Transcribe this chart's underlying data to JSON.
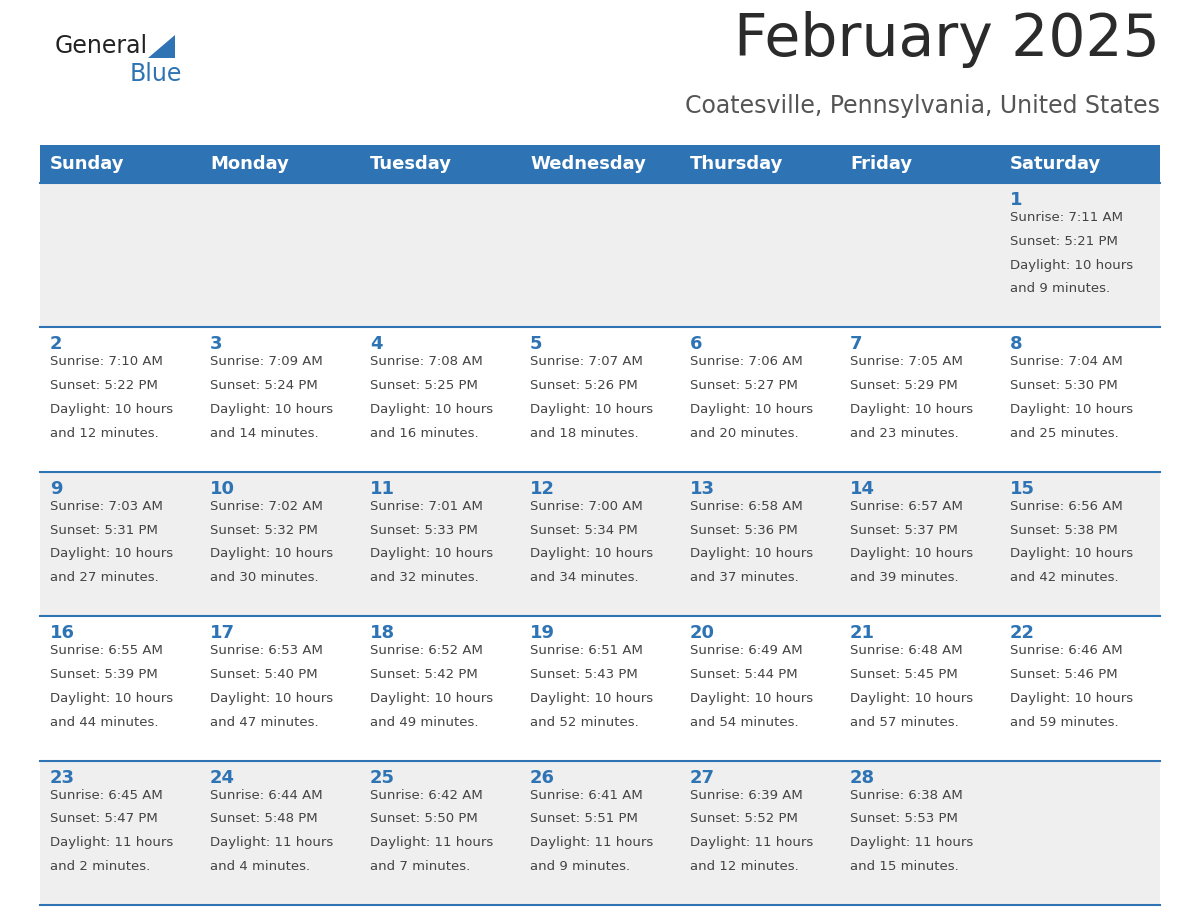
{
  "title": "February 2025",
  "subtitle": "Coatesville, Pennsylvania, United States",
  "days_of_week": [
    "Sunday",
    "Monday",
    "Tuesday",
    "Wednesday",
    "Thursday",
    "Friday",
    "Saturday"
  ],
  "header_bg": "#2E74B5",
  "header_text_color": "#FFFFFF",
  "row_bg_odd": "#EFEFEF",
  "row_bg_even": "#FFFFFF",
  "cell_text_color": "#444444",
  "day_num_color": "#2E74B5",
  "separator_color": "#2E74B5",
  "logo_general_color": "#222222",
  "logo_blue_color": "#2E74B5",
  "weeks": [
    {
      "days": [
        {
          "date": "",
          "sunrise": "",
          "sunset": "",
          "daylight": ""
        },
        {
          "date": "",
          "sunrise": "",
          "sunset": "",
          "daylight": ""
        },
        {
          "date": "",
          "sunrise": "",
          "sunset": "",
          "daylight": ""
        },
        {
          "date": "",
          "sunrise": "",
          "sunset": "",
          "daylight": ""
        },
        {
          "date": "",
          "sunrise": "",
          "sunset": "",
          "daylight": ""
        },
        {
          "date": "",
          "sunrise": "",
          "sunset": "",
          "daylight": ""
        },
        {
          "date": "1",
          "sunrise": "7:11 AM",
          "sunset": "5:21 PM",
          "daylight": "10 hours\nand 9 minutes."
        }
      ]
    },
    {
      "days": [
        {
          "date": "2",
          "sunrise": "7:10 AM",
          "sunset": "5:22 PM",
          "daylight": "10 hours\nand 12 minutes."
        },
        {
          "date": "3",
          "sunrise": "7:09 AM",
          "sunset": "5:24 PM",
          "daylight": "10 hours\nand 14 minutes."
        },
        {
          "date": "4",
          "sunrise": "7:08 AM",
          "sunset": "5:25 PM",
          "daylight": "10 hours\nand 16 minutes."
        },
        {
          "date": "5",
          "sunrise": "7:07 AM",
          "sunset": "5:26 PM",
          "daylight": "10 hours\nand 18 minutes."
        },
        {
          "date": "6",
          "sunrise": "7:06 AM",
          "sunset": "5:27 PM",
          "daylight": "10 hours\nand 20 minutes."
        },
        {
          "date": "7",
          "sunrise": "7:05 AM",
          "sunset": "5:29 PM",
          "daylight": "10 hours\nand 23 minutes."
        },
        {
          "date": "8",
          "sunrise": "7:04 AM",
          "sunset": "5:30 PM",
          "daylight": "10 hours\nand 25 minutes."
        }
      ]
    },
    {
      "days": [
        {
          "date": "9",
          "sunrise": "7:03 AM",
          "sunset": "5:31 PM",
          "daylight": "10 hours\nand 27 minutes."
        },
        {
          "date": "10",
          "sunrise": "7:02 AM",
          "sunset": "5:32 PM",
          "daylight": "10 hours\nand 30 minutes."
        },
        {
          "date": "11",
          "sunrise": "7:01 AM",
          "sunset": "5:33 PM",
          "daylight": "10 hours\nand 32 minutes."
        },
        {
          "date": "12",
          "sunrise": "7:00 AM",
          "sunset": "5:34 PM",
          "daylight": "10 hours\nand 34 minutes."
        },
        {
          "date": "13",
          "sunrise": "6:58 AM",
          "sunset": "5:36 PM",
          "daylight": "10 hours\nand 37 minutes."
        },
        {
          "date": "14",
          "sunrise": "6:57 AM",
          "sunset": "5:37 PM",
          "daylight": "10 hours\nand 39 minutes."
        },
        {
          "date": "15",
          "sunrise": "6:56 AM",
          "sunset": "5:38 PM",
          "daylight": "10 hours\nand 42 minutes."
        }
      ]
    },
    {
      "days": [
        {
          "date": "16",
          "sunrise": "6:55 AM",
          "sunset": "5:39 PM",
          "daylight": "10 hours\nand 44 minutes."
        },
        {
          "date": "17",
          "sunrise": "6:53 AM",
          "sunset": "5:40 PM",
          "daylight": "10 hours\nand 47 minutes."
        },
        {
          "date": "18",
          "sunrise": "6:52 AM",
          "sunset": "5:42 PM",
          "daylight": "10 hours\nand 49 minutes."
        },
        {
          "date": "19",
          "sunrise": "6:51 AM",
          "sunset": "5:43 PM",
          "daylight": "10 hours\nand 52 minutes."
        },
        {
          "date": "20",
          "sunrise": "6:49 AM",
          "sunset": "5:44 PM",
          "daylight": "10 hours\nand 54 minutes."
        },
        {
          "date": "21",
          "sunrise": "6:48 AM",
          "sunset": "5:45 PM",
          "daylight": "10 hours\nand 57 minutes."
        },
        {
          "date": "22",
          "sunrise": "6:46 AM",
          "sunset": "5:46 PM",
          "daylight": "10 hours\nand 59 minutes."
        }
      ]
    },
    {
      "days": [
        {
          "date": "23",
          "sunrise": "6:45 AM",
          "sunset": "5:47 PM",
          "daylight": "11 hours\nand 2 minutes."
        },
        {
          "date": "24",
          "sunrise": "6:44 AM",
          "sunset": "5:48 PM",
          "daylight": "11 hours\nand 4 minutes."
        },
        {
          "date": "25",
          "sunrise": "6:42 AM",
          "sunset": "5:50 PM",
          "daylight": "11 hours\nand 7 minutes."
        },
        {
          "date": "26",
          "sunrise": "6:41 AM",
          "sunset": "5:51 PM",
          "daylight": "11 hours\nand 9 minutes."
        },
        {
          "date": "27",
          "sunrise": "6:39 AM",
          "sunset": "5:52 PM",
          "daylight": "11 hours\nand 12 minutes."
        },
        {
          "date": "28",
          "sunrise": "6:38 AM",
          "sunset": "5:53 PM",
          "daylight": "11 hours\nand 15 minutes."
        },
        {
          "date": "",
          "sunrise": "",
          "sunset": "",
          "daylight": ""
        }
      ]
    }
  ]
}
